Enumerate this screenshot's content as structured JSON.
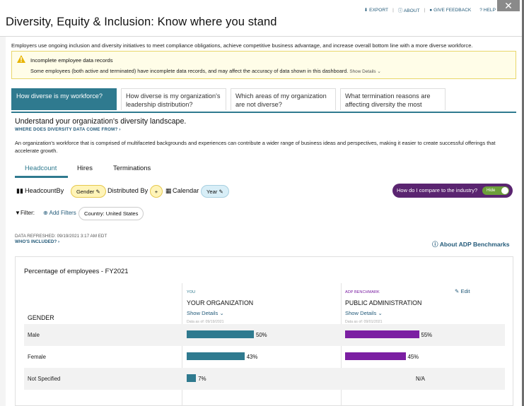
{
  "header": {
    "title": "Diversity, Equity & Inclusion: Know where you stand",
    "links": {
      "export": "EXPORT",
      "about": "ABOUT",
      "feedback": "GIVE FEEDBACK",
      "help": "HELP"
    },
    "close_icon": "close-icon"
  },
  "intro": "Employers use ongoing inclusion and diversity initiatives to meet compliance obligations, achieve competitive business advantage, and increase overall bottom line with a more diverse workforce.",
  "warning": {
    "title": "Incomplete employee data records",
    "text": "Some employees (both active and terminated) have incomplete data records, and may affect the accuracy of data shown in this dashboard.",
    "show_details": "Show Details",
    "icon": "warning-icon",
    "color": "#e8b400"
  },
  "tabs": [
    {
      "label": "How diverse is my workforce?",
      "active": true
    },
    {
      "label": "How diverse is my organization's leadership distribution?"
    },
    {
      "label": "Which areas of my organization are not diverse?"
    },
    {
      "label": "What termination reasons are affecting diversity the most"
    }
  ],
  "section": {
    "title": "Understand your organization's diversity landscape.",
    "link": "WHERE DOES DIVERSITY DATA COME FROM?",
    "description": "An organization's workforce that is comprised of multifaceted backgrounds and experiences can contribute a wider range of business ideas and perspectives, making it easier to create successful offerings that accelerate growth."
  },
  "subtabs": {
    "headcount": "Headcount",
    "hires": "Hires",
    "terminations": "Terminations"
  },
  "controls": {
    "headcount_by": "HeadcountBy",
    "gender": "Gender",
    "distributed_by": "Distributed By",
    "plus": "+",
    "calendar": "Calendar",
    "year": "Year",
    "compare": "How do I compare to the industry?",
    "toggle": "Hide"
  },
  "filter": {
    "label": "Filter:",
    "add": "Add Filters",
    "country": "Country: United States"
  },
  "refresh": {
    "text": "DATA REFRESHED: 09/19/2021 3:17 AM EDT",
    "who": "WHO'S INCLUDED?"
  },
  "benchmarks_link": "About ADP Benchmarks",
  "card": {
    "title": "Percentage of employees - FY2021",
    "you_label": "YOU",
    "org_head": "YOUR ORGANIZATION",
    "bench_label": "ADP BENCHMARK",
    "bench_head": "PUBLIC ADMINISTRATION",
    "show_details": "Show Details",
    "org_date": "Data as of: 09/19/2021",
    "bench_date": "Data as of: 09/01/2021",
    "edit": "Edit",
    "gender_head": "GENDER",
    "org_color": "#2f7a8f",
    "bench_color": "#7b1fa2",
    "rows": [
      {
        "label": "Male",
        "org": 50,
        "org_text": "50%",
        "bench": 55,
        "bench_text": "55%"
      },
      {
        "label": "Female",
        "org": 43,
        "org_text": "43%",
        "bench": 45,
        "bench_text": "45%"
      },
      {
        "label": "Not Specified",
        "org": 7,
        "org_text": "7%",
        "bench": null,
        "bench_text": "N/A"
      }
    ]
  }
}
